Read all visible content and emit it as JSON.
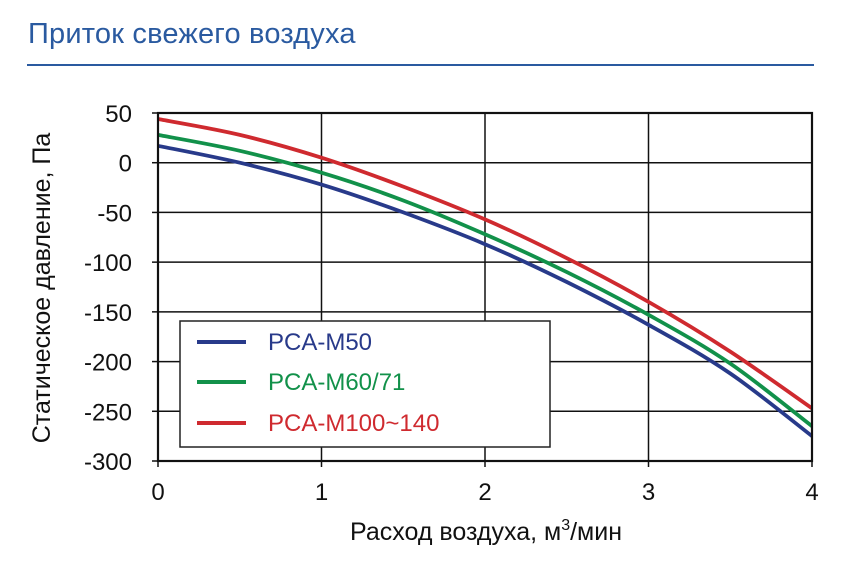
{
  "header": {
    "title": "Приток свежего воздуха"
  },
  "chart_data": {
    "type": "line",
    "title": "",
    "xlabel": "Расход воздуха, м",
    "xlabel_sup": "3",
    "xlabel_suffix": "/мин",
    "ylabel": "Статическое давление, Па",
    "xlim": [
      0,
      4
    ],
    "ylim": [
      -300,
      50
    ],
    "xticks": [
      0,
      1,
      2,
      3,
      4
    ],
    "xtick_labels": [
      "0",
      "1",
      "2",
      "3",
      "4"
    ],
    "yticks": [
      50,
      0,
      -50,
      -100,
      -150,
      -200,
      -250,
      -300
    ],
    "ytick_labels": [
      "50",
      "0",
      "-50",
      "-100",
      "-150",
      "-200",
      "-250",
      "-300"
    ],
    "grid": true,
    "legend_placement": "bottom-left",
    "series": [
      {
        "name": "PCA-M50",
        "color": "#283a8a",
        "x": [
          0,
          0.5,
          1,
          1.5,
          2,
          2.5,
          3,
          3.5,
          4
        ],
        "y": [
          17,
          0,
          -22,
          -50,
          -82,
          -120,
          -163,
          -212,
          -275
        ]
      },
      {
        "name": "PCA-M60/71",
        "color": "#12914a",
        "x": [
          0,
          0.5,
          1,
          1.5,
          2,
          2.5,
          3,
          3.5,
          4
        ],
        "y": [
          28,
          12,
          -10,
          -38,
          -72,
          -110,
          -153,
          -202,
          -265
        ]
      },
      {
        "name": "PCA-M100~140",
        "color": "#cf2a2f",
        "x": [
          0,
          0.5,
          1,
          1.5,
          2,
          2.5,
          3,
          3.5,
          4
        ],
        "y": [
          44,
          28,
          5,
          -24,
          -57,
          -96,
          -140,
          -190,
          -247
        ]
      }
    ]
  }
}
